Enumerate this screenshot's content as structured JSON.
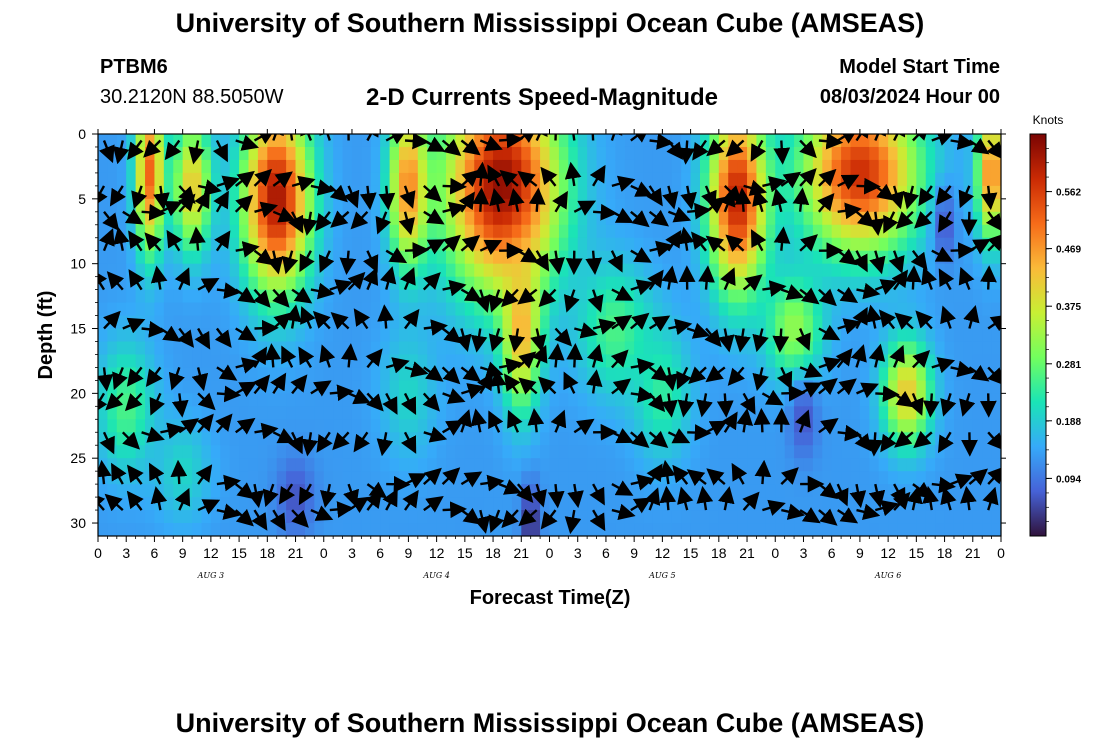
{
  "header": {
    "title": "University of Southern Mississippi Ocean Cube (AMSEAS)",
    "station_id": "PTBM6",
    "station_coords": "30.2120N  88.5050W",
    "plot_title": "2-D Currents Speed-Magnitude",
    "start_label": "Model Start Time",
    "start_value": "08/03/2024 Hour 00"
  },
  "footer": {
    "title": "University of Southern Mississippi Ocean Cube (AMSEAS)"
  },
  "colors": {
    "stops": [
      "#30123b",
      "#4662d7",
      "#36aaf9",
      "#1ae4b6",
      "#72fe5e",
      "#c8ef34",
      "#faba39",
      "#f66b19",
      "#ca2a04",
      "#7a0403"
    ],
    "arrow": "#000000"
  },
  "chart_data": {
    "type": "heatmap",
    "title": "2-D Currents Speed-Magnitude",
    "xlabel": "Forecast Time(Z)",
    "ylabel": "Depth (ft)",
    "xlim": [
      0,
      96
    ],
    "ylim": [
      31,
      0
    ],
    "x_tick_labels": [
      "0",
      "3",
      "6",
      "9",
      "12",
      "15",
      "18",
      "21",
      "0",
      "3",
      "6",
      "9",
      "12",
      "15",
      "18",
      "21",
      "0",
      "3",
      "6",
      "9",
      "12",
      "15",
      "18",
      "21",
      "0",
      "3",
      "6",
      "9",
      "12",
      "15",
      "18",
      "21",
      "0"
    ],
    "y_ticks": [
      0,
      5,
      10,
      15,
      20,
      25,
      30
    ],
    "day_labels": [
      {
        "hour": 12,
        "label": "AUG 3"
      },
      {
        "hour": 36,
        "label": "AUG 4"
      },
      {
        "hour": 60,
        "label": "AUG 5"
      },
      {
        "hour": 84,
        "label": "AUG 6"
      }
    ],
    "colorbar": {
      "unit": "Knots",
      "range": [
        0,
        0.656
      ],
      "ticks": [
        "0.094",
        "0.188",
        "0.281",
        "0.375",
        "0.469",
        "0.562"
      ]
    },
    "speed_features": [
      {
        "center_hour": 5.5,
        "center_depth": 3,
        "speed": 0.52,
        "spread_hours": 1.5,
        "spread_depth": 6
      },
      {
        "center_hour": 10,
        "center_depth": 4,
        "speed": 0.42,
        "spread_hours": 2,
        "spread_depth": 5
      },
      {
        "center_hour": 19,
        "center_depth": 5,
        "speed": 0.62,
        "spread_hours": 3.5,
        "spread_depth": 7
      },
      {
        "center_hour": 33,
        "center_depth": 4,
        "speed": 0.48,
        "spread_hours": 2,
        "spread_depth": 6
      },
      {
        "center_hour": 43,
        "center_depth": 4,
        "speed": 0.64,
        "spread_hours": 6,
        "spread_depth": 8
      },
      {
        "center_hour": 45,
        "center_depth": 15,
        "speed": 0.45,
        "spread_hours": 2,
        "spread_depth": 6
      },
      {
        "center_hour": 68,
        "center_depth": 5,
        "speed": 0.6,
        "spread_hours": 3,
        "spread_depth": 7
      },
      {
        "center_hour": 81,
        "center_depth": 3,
        "speed": 0.58,
        "spread_hours": 6,
        "spread_depth": 6
      },
      {
        "center_hour": 95,
        "center_depth": 3,
        "speed": 0.5,
        "spread_hours": 1.5,
        "spread_depth": 5
      },
      {
        "center_hour": 86,
        "center_depth": 20,
        "speed": 0.42,
        "spread_hours": 2.5,
        "spread_depth": 4
      },
      {
        "center_hour": 74,
        "center_depth": 15,
        "speed": 0.32,
        "spread_hours": 3,
        "spread_depth": 4
      },
      {
        "center_hour": 3,
        "center_depth": 21,
        "speed": 0.26,
        "spread_hours": 3,
        "spread_depth": 5
      },
      {
        "center_hour": 9,
        "center_depth": 26,
        "speed": 0.2,
        "spread_hours": 3,
        "spread_depth": 4
      },
      {
        "center_hour": 55,
        "center_depth": 15,
        "speed": 0.26,
        "spread_hours": 4,
        "spread_depth": 5
      },
      {
        "center_hour": 60,
        "center_depth": 20,
        "speed": 0.24,
        "spread_hours": 3,
        "spread_depth": 5
      },
      {
        "center_hour": 33,
        "center_depth": 20,
        "speed": 0.2,
        "spread_hours": 3,
        "spread_depth": 5
      },
      {
        "center_hour": 46,
        "center_depth": 30,
        "speed": 0.02,
        "spread_hours": 1,
        "spread_depth": 3
      },
      {
        "center_hour": 21,
        "center_depth": 28,
        "speed": 0.06,
        "spread_hours": 2,
        "spread_depth": 3
      },
      {
        "center_hour": 75,
        "center_depth": 22,
        "speed": 0.06,
        "spread_hours": 1.5,
        "spread_depth": 3
      },
      {
        "center_hour": 90,
        "center_depth": 7,
        "speed": 0.06,
        "spread_hours": 1.2,
        "spread_depth": 3
      }
    ],
    "vector_grid": {
      "hours": [
        0,
        2,
        4,
        6,
        8,
        10,
        12,
        14,
        16,
        18,
        20,
        22,
        24,
        26,
        28,
        30,
        32,
        34,
        36,
        38,
        40,
        42,
        44,
        46,
        48,
        50,
        52,
        54,
        56,
        58,
        60,
        62,
        64,
        66,
        68,
        70,
        72,
        74,
        76,
        78,
        80,
        82,
        84,
        86,
        88,
        90,
        92,
        94,
        96
      ],
      "depths": [
        0.5,
        4,
        6,
        9,
        12,
        15,
        18,
        20,
        23,
        27,
        29
      ]
    }
  }
}
